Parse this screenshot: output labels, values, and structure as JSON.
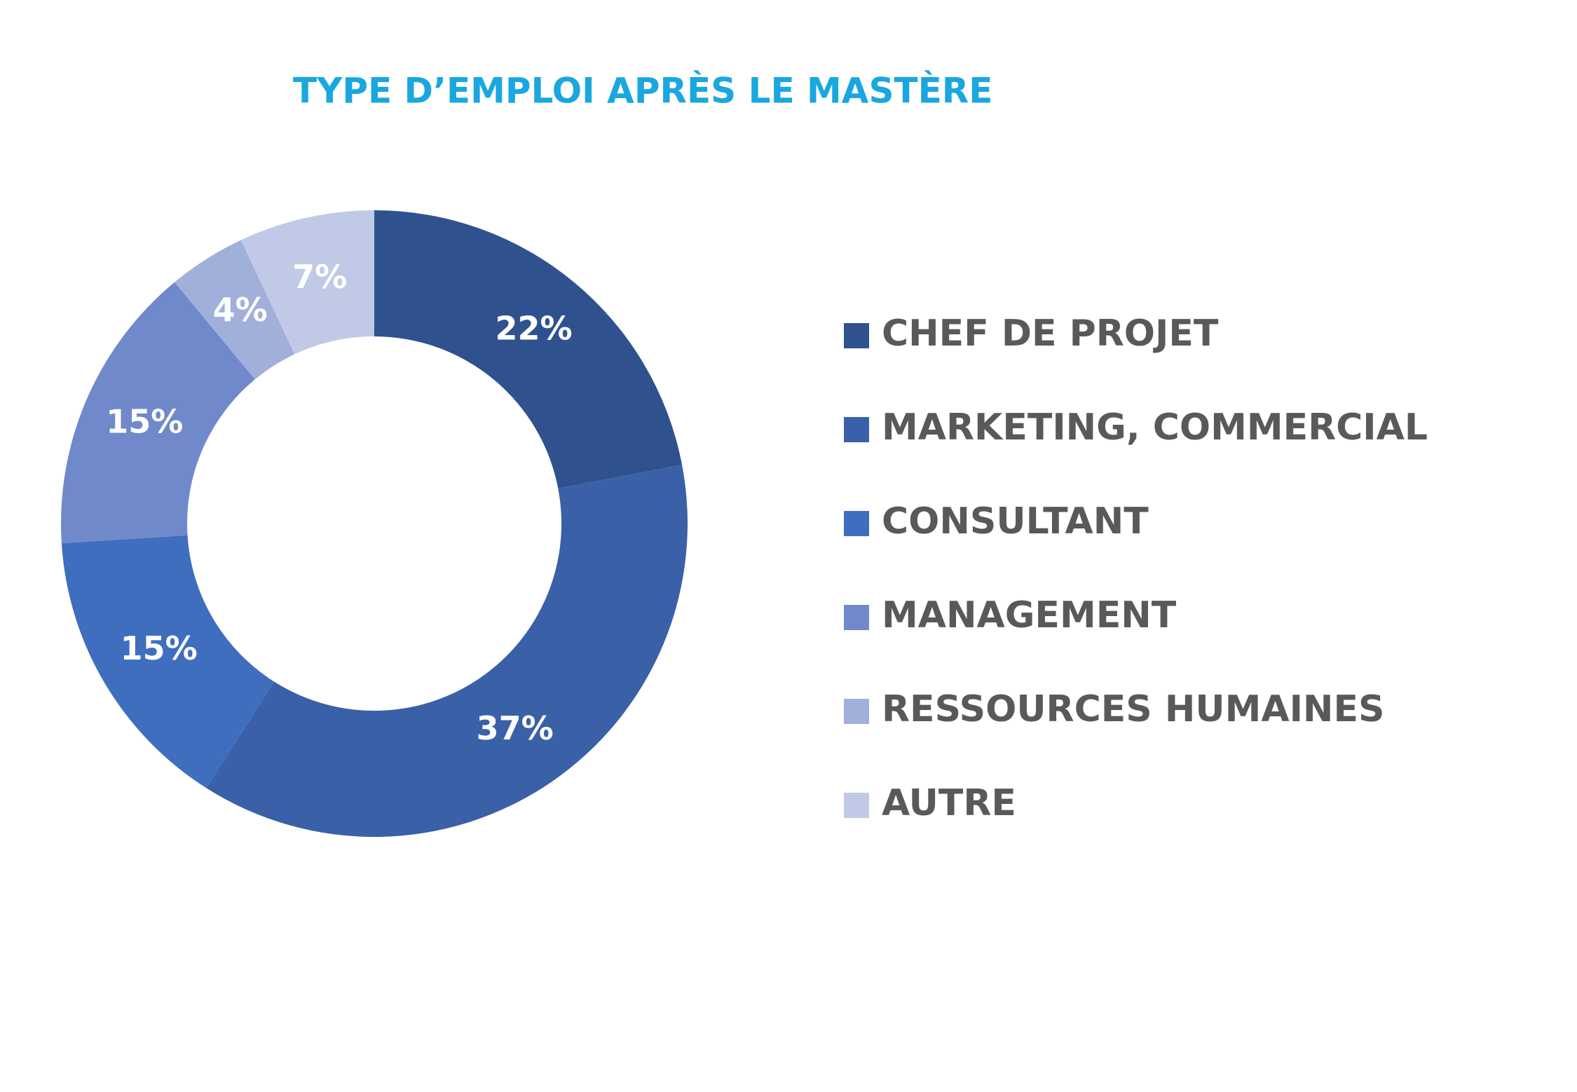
{
  "chart_data": {
    "type": "donut",
    "title": "TYPE D’EMPLOI APRÈS LE MASTÈRE",
    "categories": [
      "CHEF DE PROJET",
      "MARKETING, COMMERCIAL",
      "CONSULTANT",
      "MANAGEMENT",
      "RESSOURCES HUMAINES",
      "AUTRE"
    ],
    "values": [
      22,
      37,
      15,
      15,
      4,
      7
    ],
    "value_labels": [
      "22%",
      "37%",
      "15%",
      "15%",
      "4%",
      "7%"
    ],
    "colors": [
      "#2f528f",
      "#3a60a7",
      "#3f6ebf",
      "#6f89cb",
      "#a1afdb",
      "#c0c9e5"
    ],
    "legend": "right"
  }
}
